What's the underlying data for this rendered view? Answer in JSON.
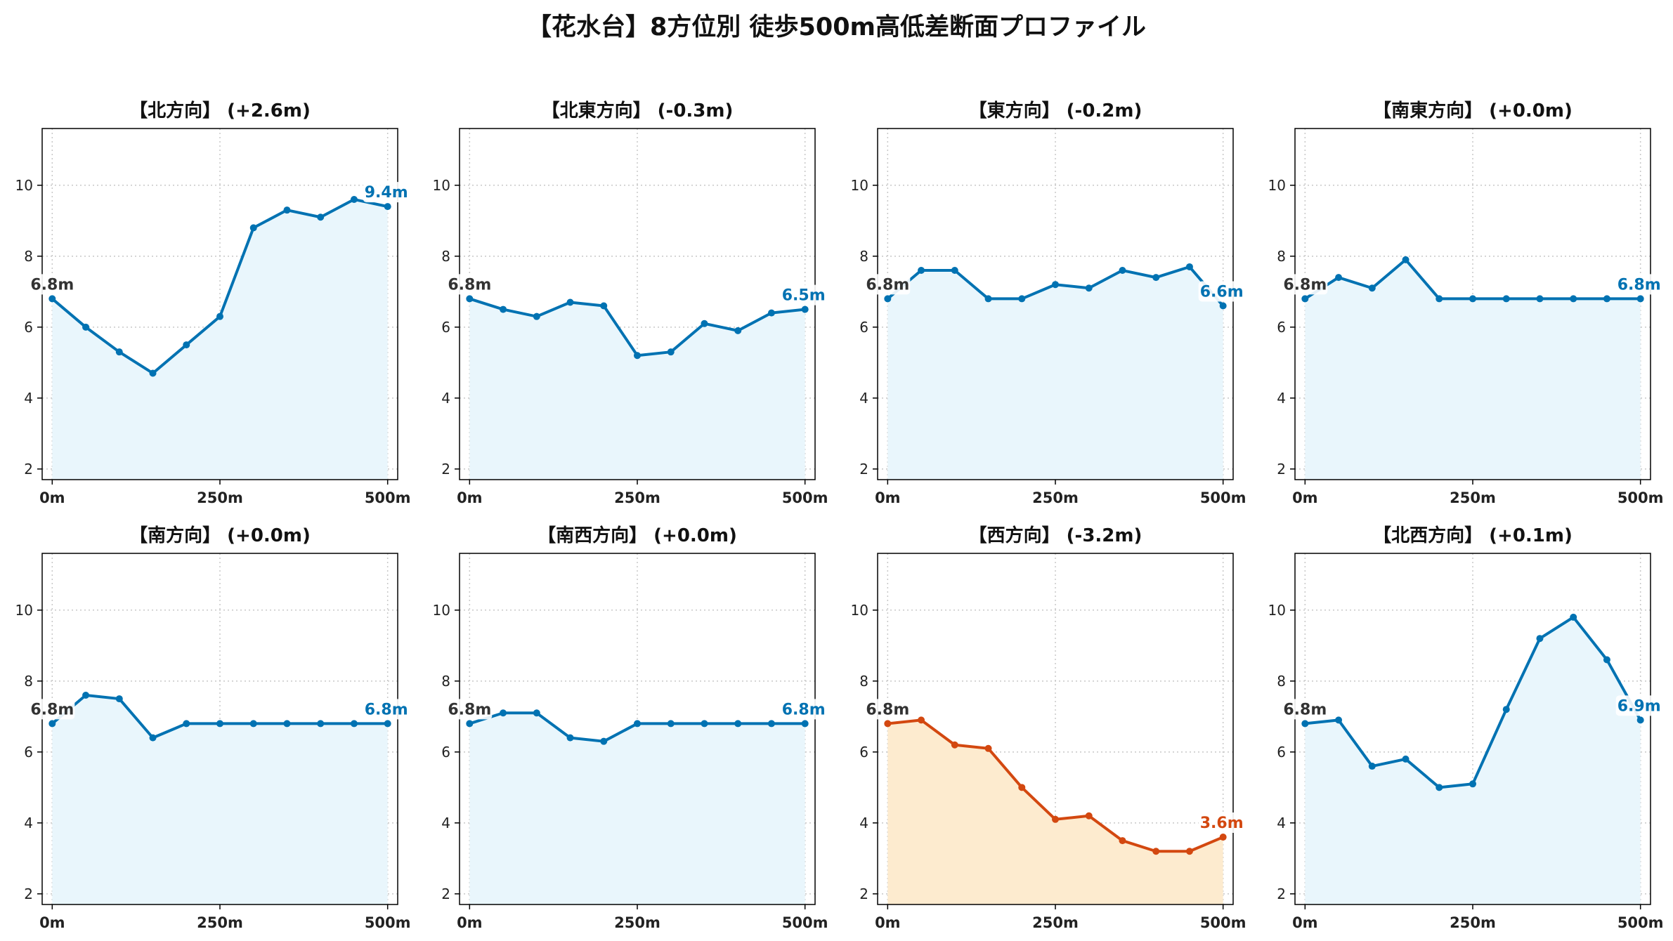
{
  "figure_title": "【花水台】8方位別 徒歩500m高低差断面プロファイル",
  "colors": {
    "rise": "#0072b2",
    "rise_fill": "#e9f6fc",
    "drop": "#d34810",
    "drop_fill": "#fdebcf",
    "start_label": "#333333",
    "grid": "#c8c8c8"
  },
  "axes": {
    "xlim": [
      -15,
      515
    ],
    "ylim": [
      1.7,
      11.6
    ],
    "x_ticks": [
      0,
      250,
      500
    ],
    "x_tick_labels": [
      "0m",
      "250m",
      "500m"
    ],
    "y_ticks": [
      2,
      4,
      6,
      8,
      10
    ],
    "y_tick_labels": [
      "2",
      "4",
      "6",
      "8",
      "10"
    ],
    "grid": true
  },
  "chart_data": [
    {
      "type": "line",
      "title": "【北方向】 (+2.6m)",
      "x": [
        0,
        50,
        100,
        150,
        200,
        250,
        300,
        350,
        400,
        450,
        500
      ],
      "values": [
        6.8,
        6.0,
        5.3,
        4.7,
        5.5,
        6.3,
        8.8,
        9.3,
        9.1,
        9.6,
        9.4
      ],
      "start_label": "6.8m",
      "end_label": "9.4m",
      "trend": "rise"
    },
    {
      "type": "line",
      "title": "【北東方向】 (-0.3m)",
      "x": [
        0,
        50,
        100,
        150,
        200,
        250,
        300,
        350,
        400,
        450,
        500
      ],
      "values": [
        6.8,
        6.5,
        6.3,
        6.7,
        6.6,
        5.2,
        5.3,
        6.1,
        5.9,
        6.4,
        6.5
      ],
      "start_label": "6.8m",
      "end_label": "6.5m",
      "trend": "rise"
    },
    {
      "type": "line",
      "title": "【東方向】 (-0.2m)",
      "x": [
        0,
        50,
        100,
        150,
        200,
        250,
        300,
        350,
        400,
        450,
        500
      ],
      "values": [
        6.8,
        7.6,
        7.6,
        6.8,
        6.8,
        7.2,
        7.1,
        7.6,
        7.4,
        7.7,
        6.6
      ],
      "start_label": "6.8m",
      "end_label": "6.6m",
      "trend": "rise"
    },
    {
      "type": "line",
      "title": "【南東方向】 (+0.0m)",
      "x": [
        0,
        50,
        100,
        150,
        200,
        250,
        300,
        350,
        400,
        450,
        500
      ],
      "values": [
        6.8,
        7.4,
        7.1,
        7.9,
        6.8,
        6.8,
        6.8,
        6.8,
        6.8,
        6.8,
        6.8
      ],
      "start_label": "6.8m",
      "end_label": "6.8m",
      "trend": "rise"
    },
    {
      "type": "line",
      "title": "【南方向】 (+0.0m)",
      "x": [
        0,
        50,
        100,
        150,
        200,
        250,
        300,
        350,
        400,
        450,
        500
      ],
      "values": [
        6.8,
        7.6,
        7.5,
        6.4,
        6.8,
        6.8,
        6.8,
        6.8,
        6.8,
        6.8,
        6.8
      ],
      "start_label": "6.8m",
      "end_label": "6.8m",
      "trend": "rise"
    },
    {
      "type": "line",
      "title": "【南西方向】 (+0.0m)",
      "x": [
        0,
        50,
        100,
        150,
        200,
        250,
        300,
        350,
        400,
        450,
        500
      ],
      "values": [
        6.8,
        7.1,
        7.1,
        6.4,
        6.3,
        6.8,
        6.8,
        6.8,
        6.8,
        6.8,
        6.8
      ],
      "start_label": "6.8m",
      "end_label": "6.8m",
      "trend": "rise"
    },
    {
      "type": "line",
      "title": "【西方向】 (-3.2m)",
      "x": [
        0,
        50,
        100,
        150,
        200,
        250,
        300,
        350,
        400,
        450,
        500
      ],
      "values": [
        6.8,
        6.9,
        6.2,
        6.1,
        5.0,
        4.1,
        4.2,
        3.5,
        3.2,
        3.2,
        3.6
      ],
      "start_label": "6.8m",
      "end_label": "3.6m",
      "trend": "drop"
    },
    {
      "type": "line",
      "title": "【北西方向】 (+0.1m)",
      "x": [
        0,
        50,
        100,
        150,
        200,
        250,
        300,
        350,
        400,
        450,
        500
      ],
      "values": [
        6.8,
        6.9,
        5.6,
        5.8,
        5.0,
        5.1,
        7.2,
        9.2,
        9.8,
        8.6,
        6.9
      ],
      "start_label": "6.8m",
      "end_label": "6.9m",
      "trend": "rise"
    }
  ]
}
